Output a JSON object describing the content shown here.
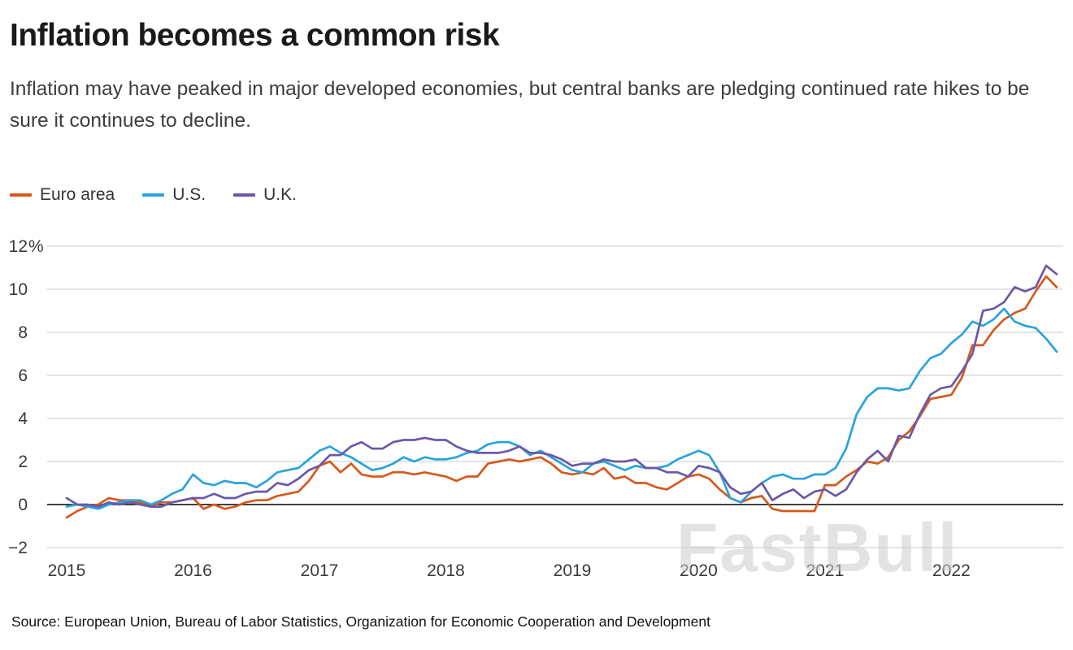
{
  "page": {
    "title": "Inflation becomes a common risk",
    "subtitle": "Inflation may have peaked in major developed economies, but central banks are pledging continued rate hikes to be sure it continues to decline.",
    "source": "Source: European Union, Bureau of Labor Statistics, Organization for Economic Cooperation and Development",
    "watermark": "FastBull"
  },
  "chart_data": {
    "type": "line",
    "title": "Inflation becomes a common risk",
    "frequency": "monthly",
    "x_start": "2015-01",
    "x_end": "2022-11",
    "x_tick_labels": [
      "2015",
      "2016",
      "2017",
      "2018",
      "2019",
      "2020",
      "2021",
      "2022"
    ],
    "y_ticks": [
      12,
      10,
      8,
      6,
      4,
      2,
      0,
      -2
    ],
    "y_tick_labels": [
      "12%",
      "10",
      "8",
      "6",
      "4",
      "2",
      "0",
      "−2"
    ],
    "ylim": [
      -2,
      12
    ],
    "grid": true,
    "legend_position": "top-left",
    "series": [
      {
        "name": "Euro area",
        "color": "#d6581d",
        "values": [
          -0.6,
          -0.3,
          -0.1,
          0.0,
          0.3,
          0.2,
          0.2,
          0.1,
          -0.1,
          0.1,
          0.1,
          0.2,
          0.3,
          -0.2,
          0.0,
          -0.2,
          -0.1,
          0.1,
          0.2,
          0.2,
          0.4,
          0.5,
          0.6,
          1.1,
          1.8,
          2.0,
          1.5,
          1.9,
          1.4,
          1.3,
          1.3,
          1.5,
          1.5,
          1.4,
          1.5,
          1.4,
          1.3,
          1.1,
          1.3,
          1.3,
          1.9,
          2.0,
          2.1,
          2.0,
          2.1,
          2.2,
          1.9,
          1.5,
          1.4,
          1.5,
          1.4,
          1.7,
          1.2,
          1.3,
          1.0,
          1.0,
          0.8,
          0.7,
          1.0,
          1.3,
          1.4,
          1.2,
          0.7,
          0.3,
          0.1,
          0.3,
          0.4,
          -0.2,
          -0.3,
          -0.3,
          -0.3,
          -0.3,
          0.9,
          0.9,
          1.3,
          1.6,
          2.0,
          1.9,
          2.2,
          3.0,
          3.4,
          4.1,
          4.9,
          5.0,
          5.1,
          5.9,
          7.4,
          7.4,
          8.1,
          8.6,
          8.9,
          9.1,
          9.9,
          10.6,
          10.1
        ]
      },
      {
        "name": "U.S.",
        "color": "#29a3dd",
        "values": [
          -0.1,
          0.0,
          -0.1,
          -0.2,
          0.0,
          0.1,
          0.2,
          0.2,
          0.0,
          0.2,
          0.5,
          0.7,
          1.4,
          1.0,
          0.9,
          1.1,
          1.0,
          1.0,
          0.8,
          1.1,
          1.5,
          1.6,
          1.7,
          2.1,
          2.5,
          2.7,
          2.4,
          2.2,
          1.9,
          1.6,
          1.7,
          1.9,
          2.2,
          2.0,
          2.2,
          2.1,
          2.1,
          2.2,
          2.4,
          2.5,
          2.8,
          2.9,
          2.9,
          2.7,
          2.3,
          2.5,
          2.2,
          1.9,
          1.6,
          1.5,
          1.9,
          2.0,
          1.8,
          1.6,
          1.8,
          1.7,
          1.7,
          1.8,
          2.1,
          2.3,
          2.5,
          2.3,
          1.5,
          0.3,
          0.1,
          0.6,
          1.0,
          1.3,
          1.4,
          1.2,
          1.2,
          1.4,
          1.4,
          1.7,
          2.6,
          4.2,
          5.0,
          5.4,
          5.4,
          5.3,
          5.4,
          6.2,
          6.8,
          7.0,
          7.5,
          7.9,
          8.5,
          8.3,
          8.6,
          9.1,
          8.5,
          8.3,
          8.2,
          7.7,
          7.1
        ]
      },
      {
        "name": "U.K.",
        "color": "#6c58a7",
        "values": [
          0.3,
          0.0,
          0.0,
          -0.1,
          0.1,
          0.0,
          0.1,
          0.0,
          -0.1,
          -0.1,
          0.1,
          0.2,
          0.3,
          0.3,
          0.5,
          0.3,
          0.3,
          0.5,
          0.6,
          0.6,
          1.0,
          0.9,
          1.2,
          1.6,
          1.8,
          2.3,
          2.3,
          2.7,
          2.9,
          2.6,
          2.6,
          2.9,
          3.0,
          3.0,
          3.1,
          3.0,
          3.0,
          2.7,
          2.5,
          2.4,
          2.4,
          2.4,
          2.5,
          2.7,
          2.4,
          2.4,
          2.3,
          2.1,
          1.8,
          1.9,
          1.9,
          2.1,
          2.0,
          2.0,
          2.1,
          1.7,
          1.7,
          1.5,
          1.5,
          1.3,
          1.8,
          1.7,
          1.5,
          0.8,
          0.5,
          0.6,
          1.0,
          0.2,
          0.5,
          0.7,
          0.3,
          0.6,
          0.7,
          0.4,
          0.7,
          1.5,
          2.1,
          2.5,
          2.0,
          3.2,
          3.1,
          4.2,
          5.1,
          5.4,
          5.5,
          6.2,
          7.0,
          9.0,
          9.1,
          9.4,
          10.1,
          9.9,
          10.1,
          11.1,
          10.7
        ]
      }
    ]
  }
}
